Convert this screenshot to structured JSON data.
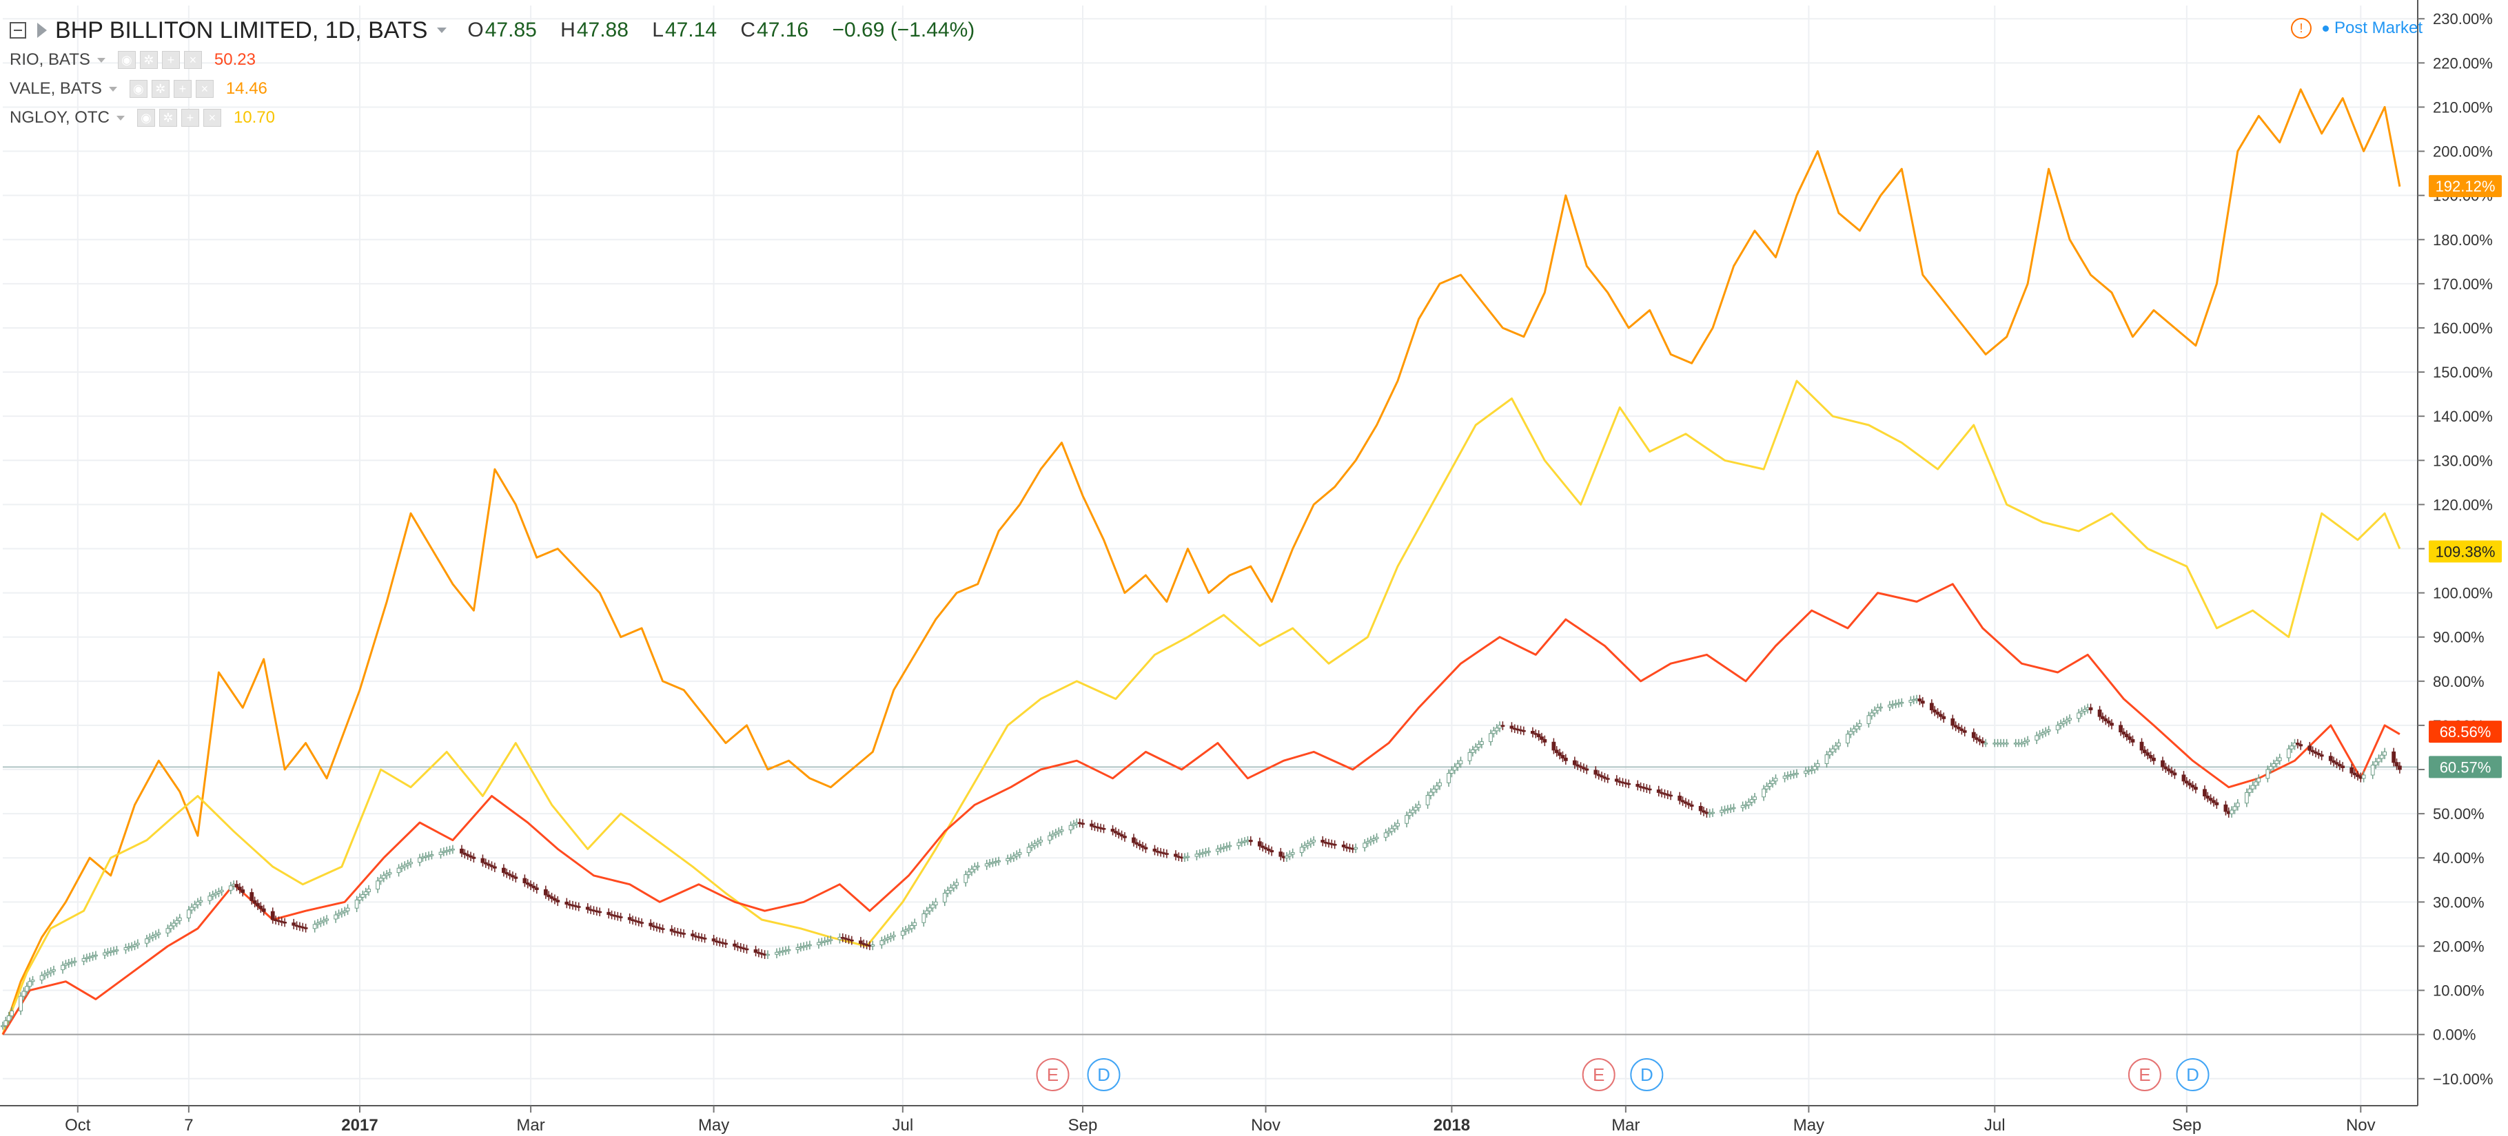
{
  "header": {
    "symbol_title": "BHP BILLITON LIMITED, 1D, BATS",
    "ohlc": [
      {
        "key": "O",
        "value": "47.85"
      },
      {
        "key": "H",
        "value": "47.88"
      },
      {
        "key": "L",
        "value": "47.14"
      },
      {
        "key": "C",
        "value": "47.16"
      }
    ],
    "change": "−0.69 (−1.44%)",
    "post_market": "Post Market",
    "warning_icon": "warning-icon",
    "collapse_icon": "collapse-icon",
    "flag_icon": "flag-icon"
  },
  "compare_symbols": [
    {
      "name": "RIO, BATS",
      "value": "50.23",
      "color": "#ff4a1f"
    },
    {
      "name": "VALE, BATS",
      "value": "14.46",
      "color": "#ff9800"
    },
    {
      "name": "NGLOY, OTC",
      "value": "10.70",
      "color": "#fdd835"
    }
  ],
  "colors": {
    "up_candle": "#ffffff",
    "up_candle_border": "#6f9d88",
    "down_candle": "#6b1e1e",
    "baseline": "#9e9e9e",
    "current_line": "#b0c4c4",
    "grid": "#eef0f3"
  },
  "events": [
    {
      "label": "E",
      "date": "2017-08-22",
      "color": "#e57373"
    },
    {
      "label": "D",
      "date": "2017-09-08",
      "color": "#42a5f5"
    },
    {
      "label": "E",
      "date": "2018-02-20",
      "color": "#e57373"
    },
    {
      "label": "D",
      "date": "2018-03-08",
      "color": "#42a5f5"
    },
    {
      "label": "E",
      "date": "2018-08-21",
      "color": "#e57373"
    },
    {
      "label": "D",
      "date": "2018-09-06",
      "color": "#42a5f5"
    }
  ],
  "chart_data": {
    "type": "line",
    "y_unit": "% change",
    "ylim": [
      -13,
      233
    ],
    "xlim": [
      "2016-09-06",
      "2018-11-20"
    ],
    "grid": true,
    "y_ticks": [
      "230.00%",
      "220.00%",
      "210.00%",
      "200.00%",
      "190.00%",
      "180.00%",
      "170.00%",
      "160.00%",
      "150.00%",
      "140.00%",
      "130.00%",
      "120.00%",
      "110.00%",
      "100.00%",
      "90.00%",
      "80.00%",
      "70.00%",
      "60.00%",
      "50.00%",
      "40.00%",
      "30.00%",
      "20.00%",
      "10.00%",
      "0.00%",
      "−10.00%"
    ],
    "x_ticks": [
      {
        "label": "Oct",
        "date": "2016-10-01",
        "bold": false
      },
      {
        "label": "7",
        "date": "2016-11-07",
        "bold": false
      },
      {
        "label": "2017",
        "date": "2017-01-03",
        "bold": true
      },
      {
        "label": "Mar",
        "date": "2017-03-01",
        "bold": false
      },
      {
        "label": "May",
        "date": "2017-05-01",
        "bold": false
      },
      {
        "label": "Jul",
        "date": "2017-07-03",
        "bold": false
      },
      {
        "label": "Sep",
        "date": "2017-09-01",
        "bold": false
      },
      {
        "label": "Nov",
        "date": "2017-11-01",
        "bold": false
      },
      {
        "label": "2018",
        "date": "2018-01-02",
        "bold": true
      },
      {
        "label": "Mar",
        "date": "2018-03-01",
        "bold": false
      },
      {
        "label": "May",
        "date": "2018-05-01",
        "bold": false
      },
      {
        "label": "Jul",
        "date": "2018-07-02",
        "bold": false
      },
      {
        "label": "Sep",
        "date": "2018-09-04",
        "bold": false
      },
      {
        "label": "Nov",
        "date": "2018-11-01",
        "bold": false
      }
    ],
    "price_labels": [
      {
        "series": "VALE, BATS",
        "text": "192.12%",
        "value": 192.12,
        "bg": "#ff9800",
        "fg": "#ffffff"
      },
      {
        "series": "NGLOY, OTC",
        "text": "109.38%",
        "value": 109.38,
        "bg": "#ffd600",
        "fg": "#222222"
      },
      {
        "series": "RIO, BATS",
        "text": "68.56%",
        "value": 68.56,
        "bg": "#ff3d00",
        "fg": "#ffffff"
      },
      {
        "series": "BHP BILLITON LIMITED, 1D, BATS",
        "text": "60.57%",
        "value": 60.57,
        "bg": "#5b9e82",
        "fg": "#ffffff"
      }
    ],
    "series": [
      {
        "name": "VALE, BATS",
        "color": "#ff9800",
        "x": [
          "2016-09-06",
          "2016-09-12",
          "2016-09-19",
          "2016-09-27",
          "2016-10-05",
          "2016-10-12",
          "2016-10-20",
          "2016-10-28",
          "2016-11-04",
          "2016-11-10",
          "2016-11-17",
          "2016-11-25",
          "2016-12-02",
          "2016-12-09",
          "2016-12-16",
          "2016-12-23",
          "2017-01-03",
          "2017-01-12",
          "2017-01-20",
          "2017-01-27",
          "2017-02-03",
          "2017-02-10",
          "2017-02-17",
          "2017-02-24",
          "2017-03-03",
          "2017-03-10",
          "2017-03-17",
          "2017-03-24",
          "2017-03-31",
          "2017-04-07",
          "2017-04-14",
          "2017-04-21",
          "2017-04-28",
          "2017-05-05",
          "2017-05-12",
          "2017-05-19",
          "2017-05-26",
          "2017-06-02",
          "2017-06-09",
          "2017-06-16",
          "2017-06-23",
          "2017-06-30",
          "2017-07-07",
          "2017-07-14",
          "2017-07-21",
          "2017-07-28",
          "2017-08-04",
          "2017-08-11",
          "2017-08-18",
          "2017-08-25",
          "2017-09-01",
          "2017-09-08",
          "2017-09-15",
          "2017-09-22",
          "2017-09-29",
          "2017-10-06",
          "2017-10-13",
          "2017-10-20",
          "2017-10-27",
          "2017-11-03",
          "2017-11-10",
          "2017-11-17",
          "2017-11-24",
          "2017-12-01",
          "2017-12-08",
          "2017-12-15",
          "2017-12-22",
          "2017-12-29",
          "2018-01-05",
          "2018-01-12",
          "2018-01-19",
          "2018-01-26",
          "2018-02-02",
          "2018-02-09",
          "2018-02-16",
          "2018-02-23",
          "2018-03-02",
          "2018-03-09",
          "2018-03-16",
          "2018-03-23",
          "2018-03-30",
          "2018-04-06",
          "2018-04-13",
          "2018-04-20",
          "2018-04-27",
          "2018-05-04",
          "2018-05-11",
          "2018-05-18",
          "2018-05-25",
          "2018-06-01",
          "2018-06-08",
          "2018-06-15",
          "2018-06-22",
          "2018-06-29",
          "2018-07-06",
          "2018-07-13",
          "2018-07-20",
          "2018-07-27",
          "2018-08-03",
          "2018-08-10",
          "2018-08-17",
          "2018-08-24",
          "2018-08-31",
          "2018-09-07",
          "2018-09-14",
          "2018-09-21",
          "2018-09-28",
          "2018-10-05",
          "2018-10-12",
          "2018-10-19",
          "2018-10-26",
          "2018-11-02",
          "2018-11-09",
          "2018-11-14"
        ],
        "values": [
          0,
          12,
          22,
          30,
          40,
          36,
          52,
          62,
          55,
          45,
          82,
          74,
          85,
          60,
          66,
          58,
          78,
          98,
          118,
          110,
          102,
          96,
          128,
          120,
          108,
          110,
          105,
          100,
          90,
          92,
          80,
          78,
          72,
          66,
          70,
          60,
          62,
          58,
          56,
          60,
          64,
          78,
          86,
          94,
          100,
          102,
          114,
          120,
          128,
          134,
          122,
          112,
          100,
          104,
          98,
          110,
          100,
          104,
          106,
          98,
          110,
          120,
          124,
          130,
          138,
          148,
          162,
          170,
          172,
          166,
          160,
          158,
          168,
          190,
          174,
          168,
          160,
          164,
          154,
          152,
          160,
          174,
          182,
          176,
          190,
          200,
          186,
          182,
          190,
          196,
          172,
          166,
          160,
          154,
          158,
          170,
          196,
          180,
          172,
          168,
          158,
          164,
          160,
          156,
          170,
          200,
          208,
          202,
          214,
          204,
          212,
          200,
          210,
          192
        ]
      },
      {
        "name": "NGLOY, OTC",
        "color": "#fdd835",
        "x": [
          "2016-09-06",
          "2016-09-14",
          "2016-09-22",
          "2016-10-03",
          "2016-10-12",
          "2016-10-24",
          "2016-11-03",
          "2016-11-10",
          "2016-11-22",
          "2016-12-05",
          "2016-12-15",
          "2016-12-28",
          "2017-01-10",
          "2017-01-20",
          "2017-02-01",
          "2017-02-13",
          "2017-02-24",
          "2017-03-08",
          "2017-03-20",
          "2017-03-31",
          "2017-04-12",
          "2017-04-24",
          "2017-05-05",
          "2017-05-17",
          "2017-05-30",
          "2017-06-09",
          "2017-06-21",
          "2017-07-03",
          "2017-07-14",
          "2017-07-26",
          "2017-08-07",
          "2017-08-18",
          "2017-08-30",
          "2017-09-12",
          "2017-09-25",
          "2017-10-06",
          "2017-10-18",
          "2017-10-30",
          "2017-11-10",
          "2017-11-22",
          "2017-12-05",
          "2017-12-15",
          "2017-12-28",
          "2018-01-10",
          "2018-01-22",
          "2018-02-02",
          "2018-02-14",
          "2018-02-27",
          "2018-03-09",
          "2018-03-21",
          "2018-04-03",
          "2018-04-16",
          "2018-04-27",
          "2018-05-09",
          "2018-05-21",
          "2018-06-01",
          "2018-06-13",
          "2018-06-25",
          "2018-07-06",
          "2018-07-18",
          "2018-07-30",
          "2018-08-10",
          "2018-08-22",
          "2018-09-04",
          "2018-09-14",
          "2018-09-26",
          "2018-10-08",
          "2018-10-19",
          "2018-10-31",
          "2018-11-09",
          "2018-11-14"
        ],
        "values": [
          0,
          14,
          24,
          28,
          40,
          44,
          50,
          54,
          46,
          38,
          34,
          38,
          60,
          56,
          64,
          54,
          66,
          52,
          42,
          50,
          44,
          38,
          32,
          26,
          24,
          22,
          20,
          30,
          42,
          56,
          70,
          76,
          80,
          76,
          86,
          90,
          95,
          88,
          92,
          84,
          90,
          106,
          122,
          138,
          144,
          130,
          120,
          142,
          132,
          136,
          130,
          128,
          148,
          140,
          138,
          134,
          128,
          138,
          120,
          116,
          114,
          118,
          110,
          106,
          92,
          96,
          90,
          118,
          112,
          118,
          110
        ]
      },
      {
        "name": "RIO, BATS",
        "color": "#ff4a1f",
        "x": [
          "2016-09-06",
          "2016-09-15",
          "2016-09-27",
          "2016-10-07",
          "2016-10-19",
          "2016-10-31",
          "2016-11-10",
          "2016-11-22",
          "2016-12-05",
          "2016-12-16",
          "2016-12-29",
          "2017-01-11",
          "2017-01-23",
          "2017-02-03",
          "2017-02-16",
          "2017-02-28",
          "2017-03-10",
          "2017-03-22",
          "2017-04-03",
          "2017-04-13",
          "2017-04-26",
          "2017-05-08",
          "2017-05-18",
          "2017-05-31",
          "2017-06-12",
          "2017-06-22",
          "2017-07-05",
          "2017-07-17",
          "2017-07-27",
          "2017-08-08",
          "2017-08-18",
          "2017-08-30",
          "2017-09-11",
          "2017-09-22",
          "2017-10-04",
          "2017-10-16",
          "2017-10-26",
          "2017-11-07",
          "2017-11-17",
          "2017-11-30",
          "2017-12-12",
          "2017-12-22",
          "2018-01-05",
          "2018-01-18",
          "2018-01-30",
          "2018-02-09",
          "2018-02-22",
          "2018-03-06",
          "2018-03-16",
          "2018-03-28",
          "2018-04-10",
          "2018-04-20",
          "2018-05-02",
          "2018-05-14",
          "2018-05-24",
          "2018-06-06",
          "2018-06-18",
          "2018-06-28",
          "2018-07-11",
          "2018-07-23",
          "2018-08-02",
          "2018-08-14",
          "2018-08-24",
          "2018-09-06",
          "2018-09-18",
          "2018-09-28",
          "2018-10-10",
          "2018-10-22",
          "2018-11-01",
          "2018-11-09",
          "2018-11-14"
        ],
        "values": [
          0,
          10,
          12,
          8,
          14,
          20,
          24,
          34,
          26,
          28,
          30,
          40,
          48,
          44,
          54,
          48,
          42,
          36,
          34,
          30,
          34,
          30,
          28,
          30,
          34,
          28,
          36,
          46,
          52,
          56,
          60,
          62,
          58,
          64,
          60,
          66,
          58,
          62,
          64,
          60,
          66,
          74,
          84,
          90,
          86,
          94,
          88,
          80,
          84,
          86,
          80,
          88,
          96,
          92,
          100,
          98,
          102,
          92,
          84,
          82,
          86,
          76,
          70,
          62,
          56,
          58,
          62,
          70,
          58,
          70,
          68
        ]
      },
      {
        "name": "BHP BILLITON LIMITED, 1D, BATS",
        "color": "#5b9e82",
        "x": [
          "2016-09-06",
          "2016-09-15",
          "2016-09-27",
          "2016-10-07",
          "2016-10-19",
          "2016-10-31",
          "2016-11-10",
          "2016-11-22",
          "2016-12-05",
          "2016-12-16",
          "2016-12-29",
          "2017-01-11",
          "2017-01-23",
          "2017-02-03",
          "2017-02-16",
          "2017-02-28",
          "2017-03-10",
          "2017-03-22",
          "2017-04-03",
          "2017-04-13",
          "2017-04-26",
          "2017-05-08",
          "2017-05-18",
          "2017-05-31",
          "2017-06-12",
          "2017-06-22",
          "2017-07-05",
          "2017-07-17",
          "2017-07-27",
          "2017-08-08",
          "2017-08-18",
          "2017-08-30",
          "2017-09-11",
          "2017-09-22",
          "2017-10-04",
          "2017-10-16",
          "2017-10-26",
          "2017-11-07",
          "2017-11-17",
          "2017-11-30",
          "2017-12-12",
          "2017-12-22",
          "2018-01-05",
          "2018-01-18",
          "2018-01-30",
          "2018-02-09",
          "2018-02-22",
          "2018-03-06",
          "2018-03-16",
          "2018-03-28",
          "2018-04-10",
          "2018-04-20",
          "2018-05-02",
          "2018-05-14",
          "2018-05-24",
          "2018-06-06",
          "2018-06-18",
          "2018-06-28",
          "2018-07-11",
          "2018-07-23",
          "2018-08-02",
          "2018-08-14",
          "2018-08-24",
          "2018-09-06",
          "2018-09-18",
          "2018-09-28",
          "2018-10-10",
          "2018-10-22",
          "2018-11-01",
          "2018-11-09",
          "2018-11-14"
        ],
        "values": [
          2,
          12,
          16,
          18,
          20,
          24,
          30,
          34,
          26,
          24,
          28,
          36,
          40,
          42,
          38,
          34,
          30,
          28,
          26,
          24,
          22,
          20,
          18,
          20,
          22,
          20,
          24,
          32,
          38,
          40,
          44,
          48,
          46,
          42,
          40,
          42,
          44,
          40,
          44,
          42,
          46,
          52,
          62,
          70,
          68,
          62,
          58,
          56,
          54,
          50,
          52,
          58,
          60,
          68,
          74,
          76,
          70,
          66,
          66,
          70,
          74,
          68,
          62,
          56,
          50,
          58,
          66,
          62,
          58,
          64,
          60
        ]
      }
    ]
  }
}
